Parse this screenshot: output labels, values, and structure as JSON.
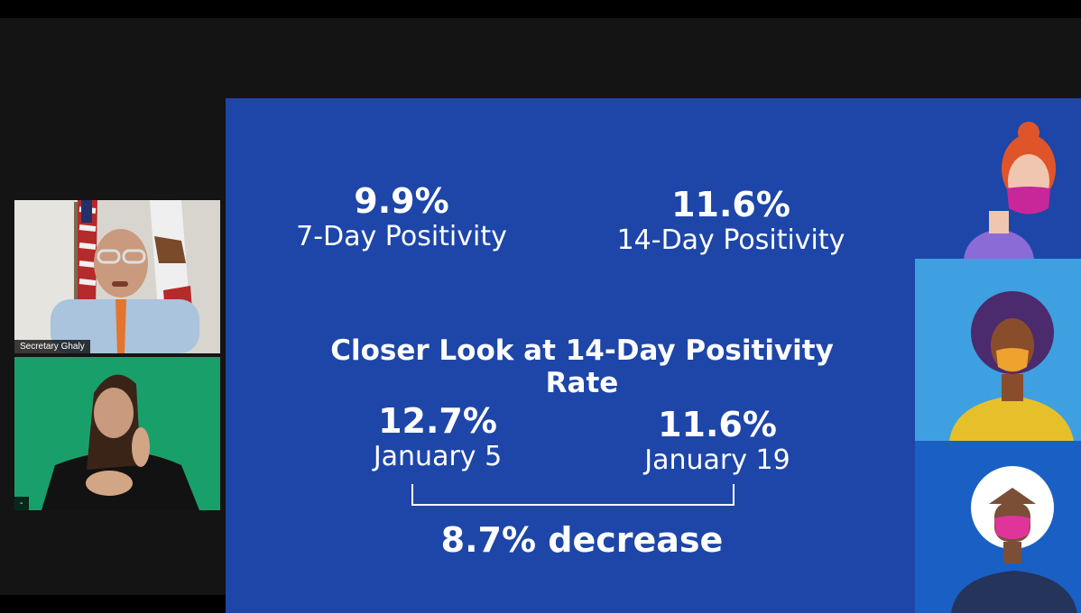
{
  "participants": [
    {
      "name": "Secretary Ghaly"
    },
    {
      "name": "-"
    }
  ],
  "slide": {
    "top_stats": [
      {
        "value": "9.9%",
        "label": "7-Day Positivity"
      },
      {
        "value": "11.6%",
        "label": "14-Day Positivity"
      }
    ],
    "heading": "Closer Look at 14-Day Positivity Rate",
    "comparison": [
      {
        "value": "12.7%",
        "label": "January 5"
      },
      {
        "value": "11.6%",
        "label": "January 19"
      }
    ],
    "change_text": "8.7% decrease"
  },
  "colors": {
    "slide_bg": "#1e46a8",
    "interpreter_bg": "#19a06a",
    "avatar_mid_bg": "#3ea0e0"
  }
}
